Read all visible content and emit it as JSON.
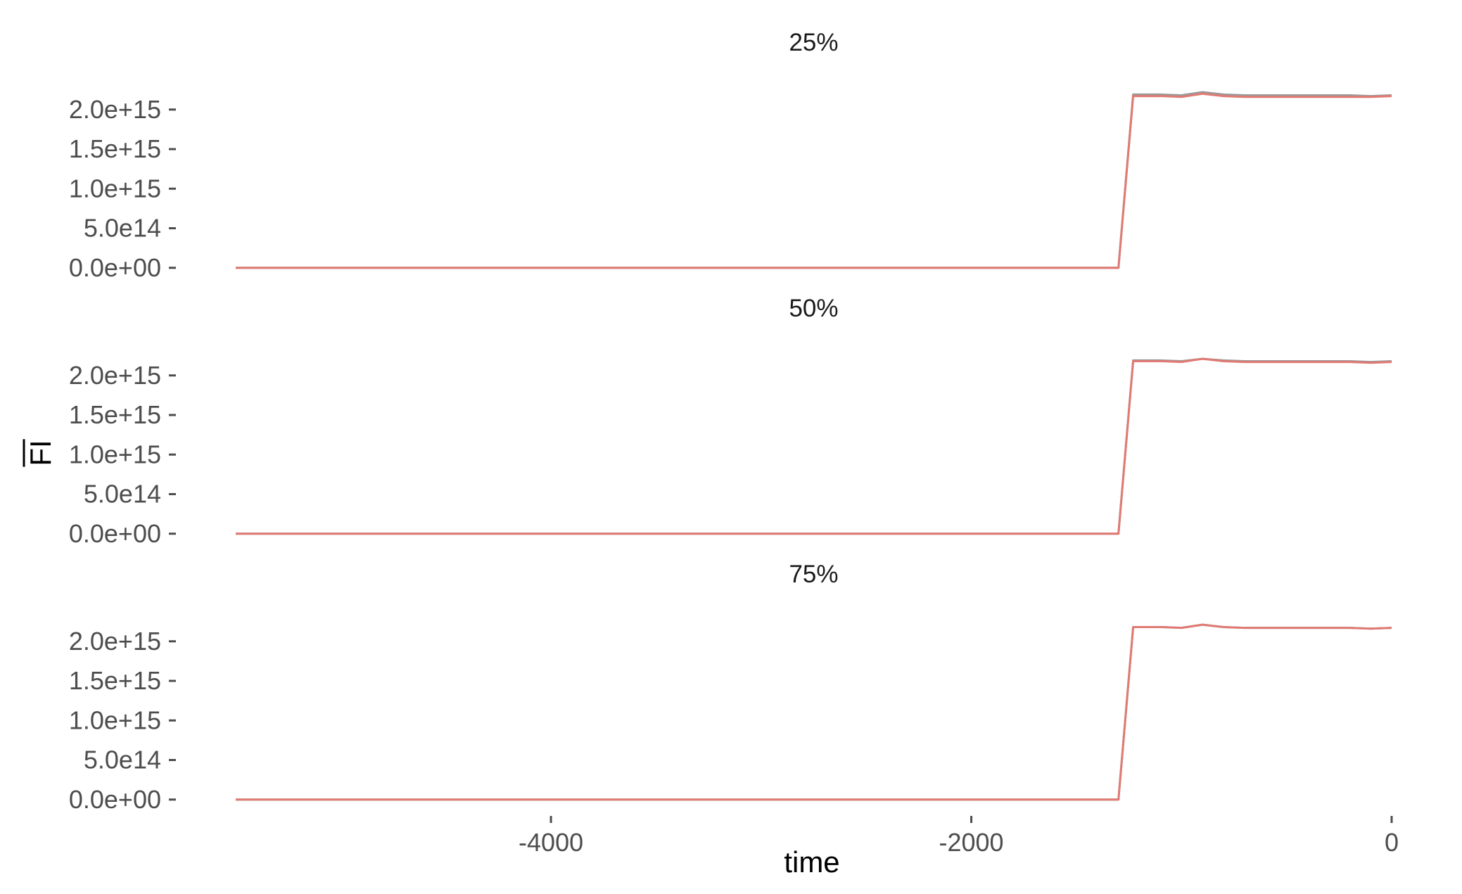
{
  "chart_data": {
    "type": "line",
    "xlabel": "time",
    "ylabel": "FI",
    "ylabel_overline": true,
    "grid": false,
    "x_ticks": [
      -4000,
      -2000,
      0
    ],
    "x_tick_labels": [
      "-4000",
      "-2000",
      "0"
    ],
    "xlim": [
      -5500,
      0
    ],
    "y_ticks": [
      0,
      500000000000000.0,
      1000000000000000.0,
      1500000000000000.0,
      2000000000000000.0
    ],
    "y_tick_labels": [
      "0.0e+00",
      "5.0e14",
      "1.0e+15",
      "1.5e+15",
      "2.0e+15"
    ],
    "ylim": [
      -100000000000000.0,
      2300000000000000.0
    ],
    "series_colors": [
      "#999999",
      "#e07a73"
    ],
    "panels": [
      {
        "title": "25%",
        "series": [
          {
            "color": "#999999",
            "x": [
              -5500,
              -1300,
              -1230,
              -1100,
              -1000,
              -900,
              -800,
              -700,
              -600,
              -500,
              -400,
              -300,
              -200,
              -100,
              0
            ],
            "y": [
              0,
              0,
              2190000000000000.0,
              2190000000000000.0,
              2180000000000000.0,
              2220000000000000.0,
              2190000000000000.0,
              2180000000000000.0,
              2180000000000000.0,
              2180000000000000.0,
              2180000000000000.0,
              2180000000000000.0,
              2180000000000000.0,
              2170000000000000.0,
              2180000000000000.0
            ]
          },
          {
            "color": "#e07a73",
            "x": [
              -5500,
              -1300,
              -1230,
              -1100,
              -1000,
              -900,
              -800,
              -700,
              -600,
              -500,
              -400,
              -300,
              -200,
              -100,
              0
            ],
            "y": [
              0,
              0,
              2170000000000000.0,
              2170000000000000.0,
              2160000000000000.0,
              2200000000000000.0,
              2170000000000000.0,
              2160000000000000.0,
              2160000000000000.0,
              2160000000000000.0,
              2160000000000000.0,
              2160000000000000.0,
              2160000000000000.0,
              2160000000000000.0,
              2170000000000000.0
            ]
          }
        ]
      },
      {
        "title": "50%",
        "series": [
          {
            "color": "#999999",
            "x": [
              -5500,
              -1300,
              -1230,
              -1100,
              -1000,
              -900,
              -800,
              -700,
              -600,
              -500,
              -400,
              -300,
              -200,
              -100,
              0
            ],
            "y": [
              0,
              0,
              2190000000000000.0,
              2190000000000000.0,
              2180000000000000.0,
              2210000000000000.0,
              2190000000000000.0,
              2180000000000000.0,
              2180000000000000.0,
              2180000000000000.0,
              2180000000000000.0,
              2180000000000000.0,
              2180000000000000.0,
              2170000000000000.0,
              2180000000000000.0
            ]
          },
          {
            "color": "#e07a73",
            "x": [
              -5500,
              -1300,
              -1230,
              -1100,
              -1000,
              -900,
              -800,
              -700,
              -600,
              -500,
              -400,
              -300,
              -200,
              -100,
              0
            ],
            "y": [
              0,
              0,
              2180000000000000.0,
              2180000000000000.0,
              2170000000000000.0,
              2210000000000000.0,
              2180000000000000.0,
              2170000000000000.0,
              2170000000000000.0,
              2170000000000000.0,
              2170000000000000.0,
              2170000000000000.0,
              2170000000000000.0,
              2160000000000000.0,
              2170000000000000.0
            ]
          }
        ]
      },
      {
        "title": "75%",
        "series": [
          {
            "color": "#999999",
            "x": [
              -5500,
              -1300,
              -1230,
              -1100,
              -1000,
              -900,
              -800,
              -700,
              -600,
              -500,
              -400,
              -300,
              -200,
              -100,
              0
            ],
            "y": [
              0,
              0,
              2180000000000000.0,
              2180000000000000.0,
              2170000000000000.0,
              2210000000000000.0,
              2180000000000000.0,
              2170000000000000.0,
              2170000000000000.0,
              2170000000000000.0,
              2170000000000000.0,
              2170000000000000.0,
              2170000000000000.0,
              2160000000000000.0,
              2170000000000000.0
            ]
          },
          {
            "color": "#e07a73",
            "x": [
              -5500,
              -1300,
              -1230,
              -1100,
              -1000,
              -900,
              -800,
              -700,
              -600,
              -500,
              -400,
              -300,
              -200,
              -100,
              0
            ],
            "y": [
              0,
              0,
              2180000000000000.0,
              2180000000000000.0,
              2170000000000000.0,
              2210000000000000.0,
              2180000000000000.0,
              2170000000000000.0,
              2170000000000000.0,
              2170000000000000.0,
              2170000000000000.0,
              2170000000000000.0,
              2170000000000000.0,
              2160000000000000.0,
              2170000000000000.0
            ]
          }
        ]
      }
    ]
  }
}
